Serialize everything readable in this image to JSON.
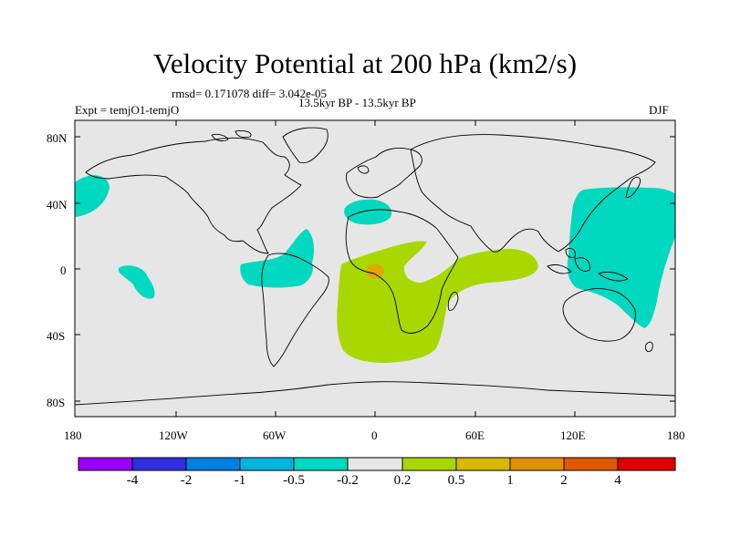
{
  "title": "Velocity Potential at 200 hPa (km2/s)",
  "stats_line": "rmsd= 0.171078 diff= 3.042e-05",
  "expt_label": "Expt = temjO1-temjO",
  "period_label": "13.5kyr BP - 13.5kyr BP",
  "season_label": "DJF",
  "map": {
    "lat_ticks": [
      "80N",
      "40N",
      "0",
      "40S",
      "80S"
    ],
    "lon_ticks": [
      "180",
      "120W",
      "60W",
      "0",
      "60E",
      "120E",
      "180"
    ],
    "background_color": "#e6e6e6",
    "coastline_color": "#000000"
  },
  "anomaly_regions": [
    {
      "name": "north-pacific-negative",
      "category": "-0.5 to -0.2",
      "color": "#00d8c0"
    },
    {
      "name": "east-pacific-negative",
      "category": "-0.5 to -0.2",
      "color": "#00d8c0"
    },
    {
      "name": "south-america-negative",
      "category": "-0.5 to -0.2",
      "color": "#00d8c0"
    },
    {
      "name": "mediterranean-negative",
      "category": "-0.5 to -0.2",
      "color": "#00d8c0"
    },
    {
      "name": "west-pacific-negative",
      "category": "-0.5 to -0.2",
      "color": "#00d8c0"
    },
    {
      "name": "africa-indian-ocean-positive",
      "category": "0.2 to 0.5",
      "color": "#a8d800"
    },
    {
      "name": "gulf-of-guinea-positive",
      "category": "0.5 to 1",
      "color": "#e0a800"
    }
  ],
  "colorbar": {
    "colors": [
      "#9b00ff",
      "#2f2fe0",
      "#0080e0",
      "#00b4e0",
      "#00d8c0",
      "#e6e6e6",
      "#a8d800",
      "#d8b800",
      "#e09000",
      "#e05800",
      "#e00000"
    ],
    "labels": [
      "-4",
      "-2",
      "-1",
      "-0.5",
      "-0.2",
      "0.2",
      "0.5",
      "1",
      "2",
      "4"
    ]
  }
}
